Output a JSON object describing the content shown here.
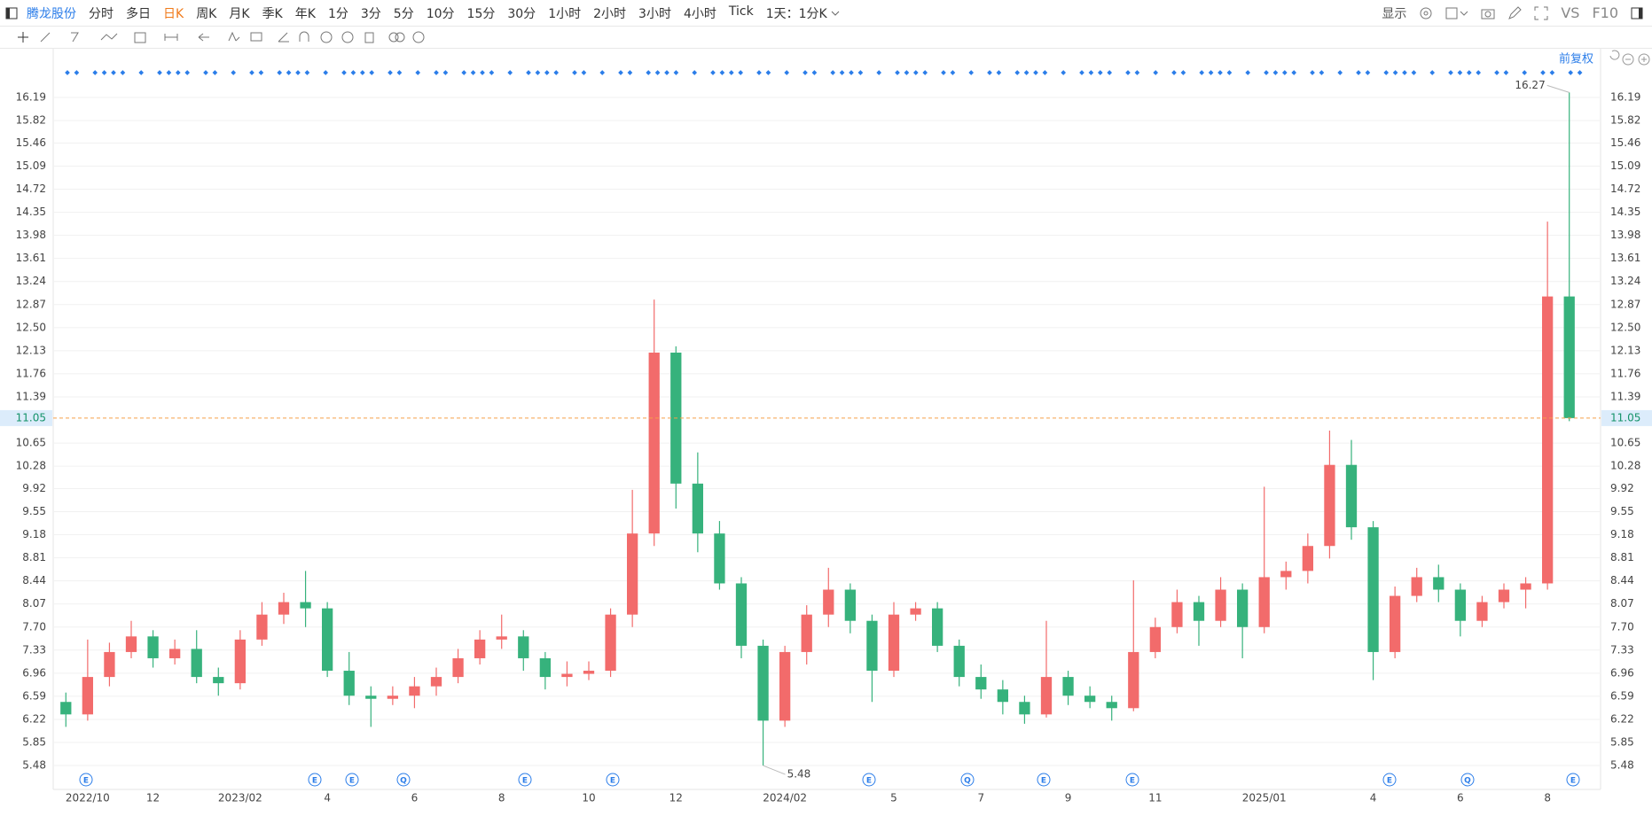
{
  "toolbar": {
    "stock": "腾龙股份",
    "periods": [
      {
        "label": "分时"
      },
      {
        "label": "多日"
      },
      {
        "label": "日K",
        "active": true
      },
      {
        "label": "周K"
      },
      {
        "label": "月K"
      },
      {
        "label": "季K"
      },
      {
        "label": "年K"
      },
      {
        "label": "1分"
      },
      {
        "label": "3分"
      },
      {
        "label": "5分"
      },
      {
        "label": "10分"
      },
      {
        "label": "15分"
      },
      {
        "label": "30分"
      },
      {
        "label": "1小时"
      },
      {
        "label": "2小时"
      },
      {
        "label": "3小时"
      },
      {
        "label": "4小时"
      },
      {
        "label": "Tick"
      },
      {
        "label": "1天：1分K"
      }
    ],
    "display": "显示",
    "vs": "VS",
    "f10": "F10",
    "adjust": "前复权"
  },
  "chart_data": {
    "type": "candlestick",
    "categories": [
      null,
      "2022/10",
      null,
      null,
      "12",
      null,
      null,
      null,
      "2023/02",
      null,
      null,
      null,
      "4",
      null,
      null,
      null,
      "6",
      null,
      null,
      null,
      "8",
      null,
      null,
      null,
      "10",
      null,
      null,
      null,
      "12",
      null,
      null,
      null,
      null,
      "2024/02",
      null,
      null,
      null,
      null,
      "5",
      null,
      null,
      null,
      "7",
      null,
      null,
      null,
      "9",
      null,
      null,
      null,
      "11",
      null,
      null,
      null,
      null,
      "2025/01",
      null,
      null,
      null,
      null,
      "4",
      null,
      null,
      null,
      "6",
      null,
      null,
      null,
      "8",
      null
    ],
    "series": [
      {
        "up_color": "#f26b6b",
        "down_color": "#36b27c",
        "open": [
          6.5,
          6.3,
          6.9,
          7.3,
          7.55,
          7.2,
          7.35,
          6.9,
          6.8,
          7.5,
          7.9,
          8.1,
          8.0,
          7.0,
          6.6,
          6.55,
          6.6,
          6.75,
          6.9,
          7.2,
          7.5,
          7.55,
          7.2,
          6.9,
          6.95,
          7.0,
          7.9,
          9.2,
          12.1,
          10.0,
          9.2,
          8.4,
          7.4,
          6.2,
          7.3,
          7.9,
          8.3,
          7.8,
          7.0,
          7.9,
          8.0,
          7.4,
          6.9,
          6.7,
          6.5,
          6.3,
          6.9,
          6.6,
          6.5,
          6.4,
          7.3,
          7.7,
          8.1,
          7.8,
          8.3,
          7.7,
          8.5,
          8.6,
          9.0,
          10.3,
          9.3,
          7.3,
          8.2,
          8.5,
          8.3,
          7.8,
          8.1,
          8.3,
          8.4,
          13.0
        ],
        "high": [
          6.65,
          7.5,
          7.45,
          7.8,
          7.65,
          7.5,
          7.65,
          7.05,
          7.65,
          8.1,
          8.25,
          8.6,
          8.1,
          7.3,
          6.75,
          6.75,
          6.9,
          7.05,
          7.35,
          7.65,
          7.9,
          7.65,
          7.3,
          7.15,
          7.15,
          8.0,
          9.9,
          12.95,
          12.2,
          10.5,
          9.4,
          8.5,
          7.5,
          7.4,
          8.05,
          8.65,
          8.4,
          7.9,
          8.1,
          8.1,
          8.1,
          7.5,
          7.1,
          6.85,
          6.6,
          7.8,
          7.0,
          6.75,
          6.6,
          8.45,
          7.85,
          8.3,
          8.2,
          8.5,
          8.4,
          9.95,
          8.75,
          9.2,
          10.85,
          10.7,
          9.4,
          8.35,
          8.65,
          8.7,
          8.4,
          8.2,
          8.4,
          8.5,
          14.2,
          16.27
        ],
        "low": [
          6.1,
          6.2,
          6.75,
          7.2,
          7.05,
          7.1,
          6.8,
          6.6,
          6.7,
          7.4,
          7.75,
          7.7,
          6.9,
          6.45,
          6.1,
          6.45,
          6.4,
          6.6,
          6.8,
          7.1,
          7.35,
          7.0,
          6.7,
          6.75,
          6.85,
          6.9,
          7.7,
          9.0,
          9.6,
          8.9,
          8.3,
          7.2,
          5.48,
          6.1,
          7.1,
          7.7,
          7.6,
          6.5,
          6.9,
          7.8,
          7.3,
          6.75,
          6.55,
          6.3,
          6.15,
          6.25,
          6.45,
          6.4,
          6.2,
          6.35,
          7.2,
          7.6,
          7.4,
          7.7,
          7.2,
          7.6,
          8.3,
          8.4,
          8.8,
          9.1,
          6.85,
          7.2,
          8.1,
          8.1,
          7.55,
          7.7,
          8.0,
          8.0,
          8.3,
          11.0
        ],
        "close": [
          6.3,
          6.9,
          7.3,
          7.55,
          7.2,
          7.35,
          6.9,
          6.8,
          7.5,
          7.9,
          8.1,
          8.0,
          7.0,
          6.6,
          6.55,
          6.6,
          6.75,
          6.9,
          7.2,
          7.5,
          7.55,
          7.2,
          6.9,
          6.95,
          7.0,
          7.9,
          9.2,
          12.1,
          10.0,
          9.2,
          8.4,
          7.4,
          6.2,
          7.3,
          7.9,
          8.3,
          7.8,
          7.0,
          7.9,
          8.0,
          7.4,
          6.9,
          6.7,
          6.5,
          6.3,
          6.9,
          6.6,
          6.5,
          6.4,
          7.3,
          7.7,
          8.1,
          7.8,
          8.3,
          7.7,
          8.5,
          8.6,
          9.0,
          10.3,
          9.3,
          7.3,
          8.2,
          8.5,
          8.3,
          7.8,
          8.1,
          8.3,
          8.4,
          13.0,
          11.05
        ]
      }
    ],
    "ylim": [
      5.14,
      16.73
    ],
    "yticks": [
      5.48,
      5.85,
      6.22,
      6.59,
      6.96,
      7.33,
      {
        "value": 7.7,
        "label": "7.70"
      },
      8.07,
      8.44,
      8.81,
      9.18,
      9.55,
      9.92,
      10.28,
      10.65,
      11.39,
      11.76,
      12.13,
      {
        "value": 12.5,
        "label": "12.50"
      },
      12.87,
      13.24,
      13.61,
      13.98,
      14.35,
      14.72,
      15.09,
      15.46,
      15.82,
      16.19
    ],
    "grid": true,
    "last_price_color": "#f5a04a",
    "events": [
      "E",
      "E",
      "E",
      "Q",
      "E",
      "E",
      "E",
      "Q",
      "E",
      "E",
      "E",
      "Q",
      "E"
    ]
  }
}
